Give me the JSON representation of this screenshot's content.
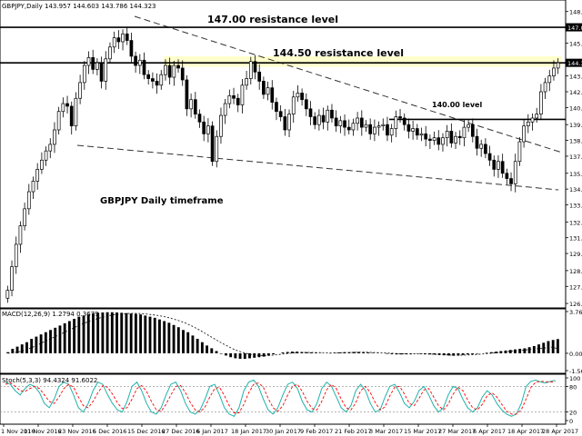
{
  "header": {
    "symbol_line": "GBPJPY,Daily  143.957 144.603 143.786 144.323"
  },
  "annotations": {
    "res147": "147.00 resistance level",
    "res1445": "144.50 resistance level",
    "lvl140": "140.00 level",
    "timeframe": "GBPJPY Daily timeframe"
  },
  "colors": {
    "up_candle": "#ffffff",
    "down_candle": "#000000",
    "zone_fill": "#ffffcc",
    "price_tag": "#000000",
    "stoch_main": "#20b2aa",
    "stoch_signal": "#ff0000",
    "macd_signal": "#000000"
  },
  "chart_data": {
    "type": "candlestick",
    "price_axis": {
      "ticks": [
        "148.2",
        "147.0",
        "145.8",
        "144.5",
        "143.3",
        "142.1",
        "140.9",
        "139.6",
        "138.4",
        "137.2",
        "135.9",
        "134.7",
        "133.5",
        "132.2",
        "131.0",
        "129.8",
        "128.5",
        "127.3",
        "126.0"
      ],
      "range": [
        125.8,
        148.8
      ],
      "current_price": "144.3",
      "level_tag": "147.0"
    },
    "time_axis": {
      "labels": [
        "1 Nov 2016",
        "11 Nov 2016",
        "23 Nov 2016",
        "5 Dec 2016",
        "15 Dec 2016",
        "27 Dec 2016",
        "6 Jan 2017",
        "18 Jan 2017",
        "30 Jan 2017",
        "9 Feb 2017",
        "21 Feb 2017",
        "3 Mar 2017",
        "15 Mar 2017",
        "27 Mar 2017",
        "6 Apr 2017",
        "18 Apr 2017",
        "28 Apr 2017"
      ]
    },
    "horizontal_levels": [
      147.0,
      144.3,
      140.0
    ],
    "resistance_zone": [
      144.0,
      144.8
    ],
    "closes": [
      127.0,
      128.8,
      130.5,
      131.9,
      133.2,
      134.5,
      135.3,
      136.2,
      136.9,
      137.6,
      138.1,
      139.2,
      140.6,
      141.2,
      141.0,
      139.5,
      141.6,
      142.8,
      144.1,
      144.7,
      143.8,
      144.3,
      142.9,
      144.6,
      145.5,
      146.2,
      145.9,
      146.5,
      146.0,
      144.8,
      144.1,
      144.5,
      143.4,
      143.1,
      142.9,
      142.6,
      143.4,
      144.1,
      143.2,
      144.1,
      143.9,
      143.0,
      140.8,
      141.5,
      140.4,
      139.8,
      138.9,
      139.5,
      136.8,
      138.7,
      140.3,
      141.2,
      141.8,
      141.6,
      141.1,
      142.6,
      143.1,
      144.4,
      143.6,
      142.9,
      141.9,
      142.4,
      141.3,
      140.6,
      140.2,
      139.2,
      140.4,
      141.7,
      142.0,
      141.5,
      140.8,
      140.2,
      139.6,
      140.3,
      139.8,
      140.7,
      140.1,
      139.5,
      139.9,
      139.4,
      139.2,
      139.7,
      140.1,
      139.4,
      139.6,
      138.9,
      139.4,
      139.5,
      139.6,
      138.8,
      139.3,
      140.2,
      140.1,
      139.6,
      139.1,
      139.3,
      138.8,
      138.9,
      138.5,
      138.4,
      138.6,
      138.1,
      138.6,
      139.1,
      138.2,
      138.7,
      138.6,
      139.4,
      139.6,
      138.7,
      137.8,
      138.1,
      137.4,
      136.9,
      136.2,
      136.8,
      135.9,
      135.5,
      135.1,
      136.8,
      138.3,
      139.5,
      139.8,
      140.1,
      140.4,
      142.1,
      142.8,
      143.3,
      143.9,
      144.3
    ],
    "macd": {
      "label": "MACD(12,26,9) 1.2794 0.3679",
      "ticks": [
        "3.7602",
        "0.00",
        "-1.56"
      ],
      "range": [
        -1.56,
        3.76
      ],
      "histogram": [
        0.1,
        0.4,
        0.6,
        0.8,
        1.0,
        1.3,
        1.5,
        1.7,
        1.9,
        2.1,
        2.3,
        2.5,
        2.7,
        2.9,
        3.1,
        3.3,
        3.4,
        3.5,
        3.6,
        3.65,
        3.68,
        3.7,
        3.7,
        3.68,
        3.65,
        3.62,
        3.58,
        3.55,
        3.5,
        3.4,
        3.3,
        3.2,
        3.05,
        2.9,
        2.75,
        2.55,
        2.35,
        2.1,
        1.9,
        1.6,
        1.3,
        1.0,
        0.7,
        0.45,
        0.2,
        -0.05,
        -0.2,
        -0.35,
        -0.45,
        -0.5,
        -0.5,
        -0.45,
        -0.4,
        -0.35,
        -0.3,
        -0.2,
        -0.1,
        0.0,
        0.08,
        0.12,
        0.15,
        0.15,
        0.12,
        0.1,
        0.08,
        0.05,
        0.02,
        0.0,
        -0.02,
        0.05,
        0.08,
        0.1,
        0.1,
        0.12,
        0.12,
        0.1,
        0.08,
        0.05,
        0.02,
        0.0,
        -0.05,
        -0.08,
        -0.1,
        -0.1,
        -0.08,
        -0.05,
        -0.02,
        -0.05,
        -0.08,
        -0.1,
        -0.12,
        -0.15,
        -0.18,
        -0.2,
        -0.22,
        -0.2,
        -0.15,
        -0.1,
        -0.08,
        -0.05,
        0.0,
        0.05,
        0.1,
        0.15,
        0.2,
        0.25,
        0.3,
        0.35,
        0.4,
        0.45,
        0.55,
        0.65,
        0.8,
        0.95,
        1.1,
        1.2,
        1.28
      ],
      "signal": [
        0.0,
        0.05,
        0.1,
        0.2,
        0.35,
        0.5,
        0.7,
        0.9,
        1.1,
        1.3,
        1.5,
        1.7,
        1.9,
        2.1,
        2.3,
        2.5,
        2.7,
        2.85,
        3.0,
        3.15,
        3.25,
        3.35,
        3.45,
        3.5,
        3.55,
        3.58,
        3.6,
        3.6,
        3.58,
        3.55,
        3.5,
        3.45,
        3.38,
        3.3,
        3.2,
        3.08,
        2.95,
        2.8,
        2.62,
        2.42,
        2.2,
        1.95,
        1.7,
        1.45,
        1.2,
        0.95,
        0.72,
        0.5,
        0.3,
        0.15,
        0.02,
        -0.08,
        -0.15,
        -0.2,
        -0.22,
        -0.2,
        -0.17,
        -0.12,
        -0.07,
        -0.02,
        0.02,
        0.05,
        0.07,
        0.08,
        0.08,
        0.07,
        0.06,
        0.05,
        0.04,
        0.04,
        0.05,
        0.06,
        0.07,
        0.08,
        0.09,
        0.09,
        0.09,
        0.08,
        0.06,
        0.04,
        0.02,
        0.0,
        -0.03,
        -0.05,
        -0.06,
        -0.06,
        -0.05,
        -0.05,
        -0.06,
        -0.07,
        -0.09,
        -0.11,
        -0.13,
        -0.15,
        -0.17,
        -0.18,
        -0.17,
        -0.15,
        -0.13,
        -0.1,
        -0.07,
        -0.03,
        0.0,
        0.05,
        0.1,
        0.14,
        0.18,
        0.22,
        0.26,
        0.3,
        0.34,
        0.38,
        0.42,
        0.47,
        0.52,
        0.57,
        0.37
      ]
    },
    "stochastic": {
      "label": "Stoch(5,3,3) 94.4324 91.6022",
      "ticks": [
        "100",
        "80",
        "20",
        "0"
      ],
      "range": [
        0,
        100
      ],
      "main": [
        90,
        85,
        70,
        60,
        75,
        85,
        80,
        65,
        40,
        30,
        50,
        80,
        90,
        85,
        60,
        30,
        20,
        40,
        70,
        90,
        85,
        60,
        40,
        25,
        20,
        45,
        80,
        90,
        70,
        40,
        20,
        15,
        30,
        60,
        85,
        90,
        70,
        40,
        20,
        15,
        25,
        50,
        80,
        85,
        60,
        30,
        15,
        10,
        30,
        70,
        90,
        95,
        80,
        50,
        25,
        15,
        30,
        60,
        85,
        90,
        75,
        45,
        25,
        20,
        40,
        75,
        90,
        80,
        55,
        30,
        20,
        35,
        70,
        85,
        70,
        40,
        20,
        25,
        55,
        80,
        85,
        65,
        40,
        30,
        45,
        70,
        80,
        60,
        35,
        20,
        30,
        60,
        80,
        75,
        50,
        30,
        20,
        30,
        55,
        70,
        60,
        40,
        25,
        15,
        10,
        15,
        40,
        80,
        92,
        95,
        90,
        88,
        92,
        94
      ],
      "signal": [
        85,
        88,
        80,
        70,
        68,
        75,
        80,
        75,
        60,
        45,
        40,
        55,
        75,
        85,
        78,
        55,
        35,
        30,
        45,
        65,
        82,
        78,
        62,
        42,
        28,
        30,
        50,
        75,
        82,
        68,
        45,
        25,
        22,
        38,
        60,
        80,
        82,
        65,
        42,
        25,
        20,
        32,
        55,
        75,
        78,
        58,
        35,
        18,
        18,
        38,
        65,
        85,
        88,
        78,
        52,
        30,
        22,
        35,
        60,
        80,
        85,
        68,
        45,
        28,
        25,
        45,
        72,
        85,
        75,
        50,
        30,
        25,
        42,
        70,
        80,
        65,
        42,
        25,
        32,
        58,
        78,
        80,
        62,
        40,
        35,
        52,
        72,
        75,
        55,
        35,
        25,
        38,
        62,
        78,
        70,
        48,
        30,
        25,
        38,
        58,
        65,
        55,
        38,
        22,
        15,
        15,
        25,
        50,
        78,
        90,
        92,
        91,
        90,
        91.6
      ]
    }
  }
}
